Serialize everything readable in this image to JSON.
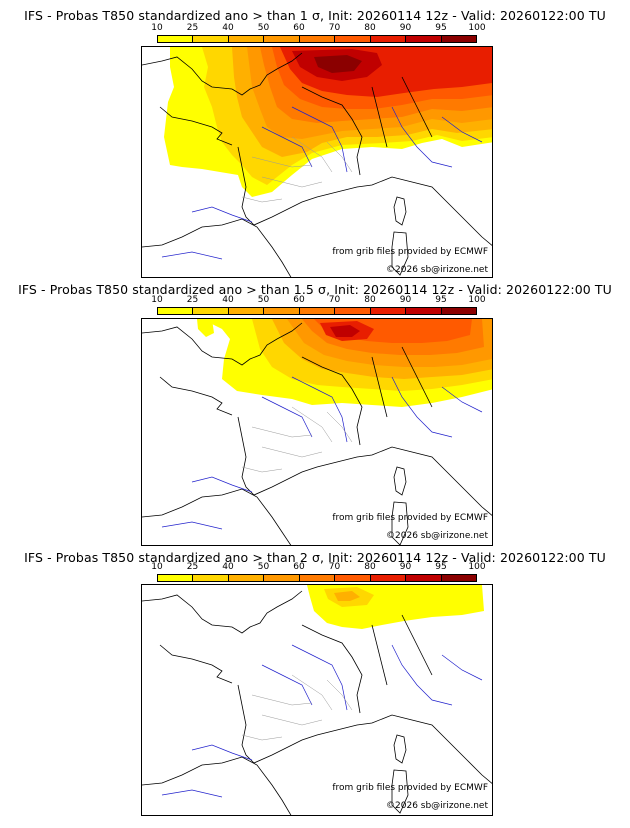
{
  "legend": {
    "ticks": [
      "10",
      "25",
      "40",
      "50",
      "60",
      "70",
      "80",
      "90",
      "95",
      "100"
    ],
    "colors": [
      "#ffff00",
      "#ffd700",
      "#ffb000",
      "#ff9800",
      "#ff7a00",
      "#ff5a00",
      "#e81e00",
      "#c00000",
      "#8b0000"
    ]
  },
  "panels": [
    {
      "title": "IFS - Probas T850  standardized ano > than 1 σ, Init: 20260114 12z - Valid: 20260122:00 TU",
      "credit": "from grib files provided by ECMWF",
      "copyright": "©2026 sb@irizone.net"
    },
    {
      "title": "IFS - Probas T850  standardized ano > than 1.5 σ, Init: 20260114 12z - Valid: 20260122:00 TU",
      "credit": "from grib files provided by ECMWF",
      "copyright": "©2026 sb@irizone.net"
    },
    {
      "title": "IFS - Probas T850  standardized ano > than 2 σ, Init: 20260114 12z - Valid: 20260122:00 TU",
      "credit": "from grib files provided by ECMWF",
      "copyright": "©2026 sb@irizone.net"
    }
  ]
}
